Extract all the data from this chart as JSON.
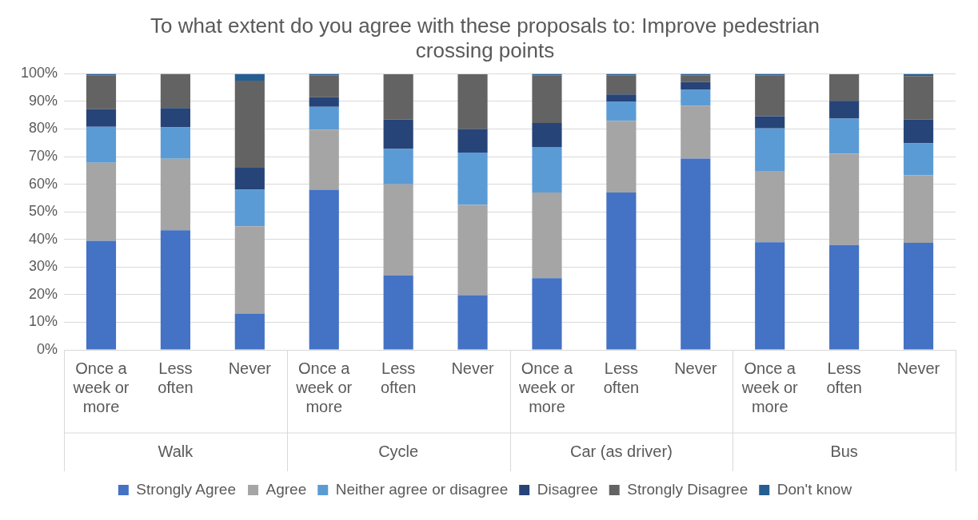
{
  "chart_data": {
    "type": "bar",
    "stacked": true,
    "title": "To what extent do you agree with these proposals to: Improve pedestrian crossing points",
    "categories": [
      "Once a week or more",
      "Less often",
      "Never",
      "Once a week or more",
      "Less often",
      "Never",
      "Once a week or more",
      "Less often",
      "Never",
      "Once a week or more",
      "Less often",
      "Never"
    ],
    "annotations": [
      "Walk",
      "Cycle",
      "Car (as driver)",
      "Bus"
    ],
    "series": [
      {
        "name": "Strongly Agree",
        "color": "#4472c4",
        "values": [
          39.5,
          43.3,
          13.2,
          58,
          27,
          19.8,
          26,
          57,
          69.3,
          39,
          38,
          38.8
        ]
      },
      {
        "name": "Agree",
        "color": "#a5a5a5",
        "values": [
          28.3,
          25.9,
          31.6,
          21.8,
          33,
          32.7,
          31,
          26,
          19.2,
          25.8,
          33,
          24.5
        ]
      },
      {
        "name": "Neither agree or disagree",
        "color": "#5b9bd5",
        "values": [
          13,
          11.4,
          13.2,
          8.2,
          12.8,
          19,
          16.5,
          7,
          5.7,
          15.4,
          12.8,
          11.5
        ]
      },
      {
        "name": "Disagree",
        "color": "#264478",
        "values": [
          6.4,
          7,
          8,
          3.5,
          10.7,
          8.5,
          8.7,
          2.5,
          2.8,
          4.4,
          6.4,
          8.7
        ]
      },
      {
        "name": "Strongly Disagree",
        "color": "#636363",
        "values": [
          12.3,
          12.4,
          31.5,
          8,
          16.3,
          19.8,
          17.3,
          7,
          2.5,
          14.9,
          9.6,
          15.7
        ]
      },
      {
        "name": "Don't know",
        "color": "#255e91",
        "values": [
          0.5,
          0,
          2.5,
          0.5,
          null,
          null,
          0.5,
          0.5,
          0.5,
          0.5,
          null,
          0.8
        ]
      }
    ],
    "ylim": [
      0,
      100
    ],
    "yticks": [
      {
        "value": 0,
        "label": "0%"
      },
      {
        "value": 10,
        "label": "10%"
      },
      {
        "value": 20,
        "label": "20%"
      },
      {
        "value": 30,
        "label": "30%"
      },
      {
        "value": 40,
        "label": "40%"
      },
      {
        "value": 50,
        "label": "50%"
      },
      {
        "value": 60,
        "label": "60%"
      },
      {
        "value": 70,
        "label": "70%"
      },
      {
        "value": 80,
        "label": "80%"
      },
      {
        "value": 90,
        "label": "90%"
      },
      {
        "value": 100,
        "label": "100%"
      }
    ],
    "grid": "y",
    "legend": "bottom"
  }
}
